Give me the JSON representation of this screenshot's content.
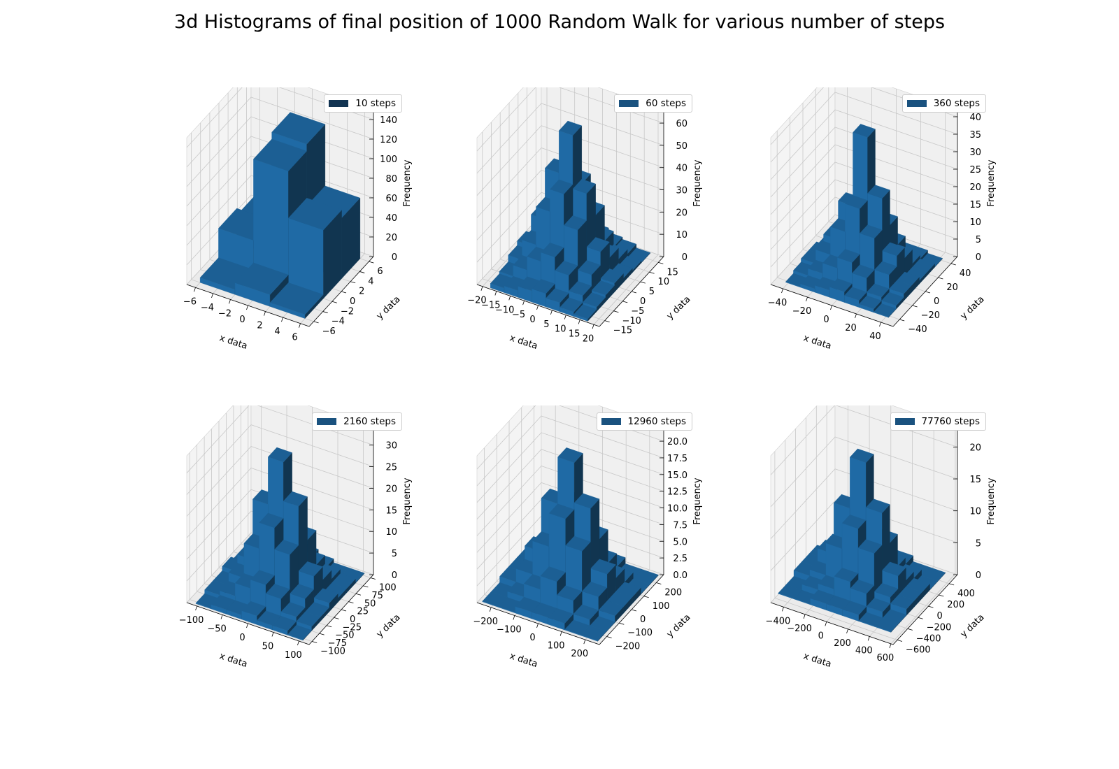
{
  "title": "3d Histograms of final position of 1000 Random Walk for various number of steps",
  "chart_data": [
    {
      "type": "bar3d",
      "legend": "10 steps",
      "legend_color": "#123452",
      "xlabel": "x data",
      "ylabel": "y data",
      "zlabel": "Frequency",
      "xlim": [
        -7,
        7
      ],
      "ylim": [
        -7,
        7
      ],
      "zlim": [
        0,
        150
      ],
      "xticks": [
        -6,
        -4,
        -2,
        0,
        2,
        4,
        6
      ],
      "xtick_labels": [
        "−6",
        "−4",
        "−2",
        "0",
        "2",
        "4",
        "6"
      ],
      "yticks": [
        -6,
        -4,
        -2,
        0,
        2,
        4,
        6
      ],
      "ytick_labels": [
        "−6",
        "−4",
        "−2",
        "0",
        "2",
        "4",
        "6"
      ],
      "zticks": [
        0,
        20,
        40,
        60,
        80,
        100,
        120,
        140
      ],
      "ztick_labels": [
        "0",
        "20",
        "40",
        "60",
        "80",
        "100",
        "120",
        "140"
      ],
      "bars": [
        {
          "x": -6,
          "y": -6,
          "dx": 4,
          "dy": 4,
          "z": 5
        },
        {
          "x": -2,
          "y": -6,
          "dx": 4,
          "dy": 4,
          "z": 12
        },
        {
          "x": 2,
          "y": -6,
          "dx": 4,
          "dy": 4,
          "z": 4
        },
        {
          "x": -6,
          "y": -2,
          "dx": 4,
          "dy": 4,
          "z": 35
        },
        {
          "x": -2,
          "y": -2,
          "dx": 4,
          "dy": 4,
          "z": 118
        },
        {
          "x": 2,
          "y": -2,
          "dx": 4,
          "dy": 4,
          "z": 70
        },
        {
          "x": -6,
          "y": 2,
          "dx": 4,
          "dy": 4,
          "z": 28
        },
        {
          "x": -2,
          "y": 2,
          "dx": 4,
          "dy": 4,
          "z": 125
        },
        {
          "x": 2,
          "y": 2,
          "dx": 4,
          "dy": 4,
          "z": 62
        }
      ]
    },
    {
      "type": "bar3d",
      "legend": "60 steps",
      "legend_color": "#1a527f",
      "xlabel": "x data",
      "ylabel": "y data",
      "zlabel": "Frequency",
      "xlim": [
        -22,
        22
      ],
      "ylim": [
        -18,
        18
      ],
      "zlim": [
        0,
        66
      ],
      "xticks": [
        -20,
        -15,
        -10,
        -5,
        0,
        5,
        10,
        15,
        20
      ],
      "xtick_labels": [
        "−20",
        "−15",
        "−10",
        "−5",
        "0",
        "5",
        "10",
        "15",
        "20"
      ],
      "yticks": [
        -15,
        -10,
        -5,
        0,
        5,
        10,
        15
      ],
      "ytick_labels": [
        "−15",
        "−10",
        "−5",
        "0",
        "5",
        "10",
        "15"
      ],
      "zticks": [
        0,
        10,
        20,
        30,
        40,
        50,
        60
      ],
      "ztick_labels": [
        "0",
        "10",
        "20",
        "30",
        "40",
        "50",
        "60"
      ],
      "grid_points": [
        -15,
        -10,
        -5,
        0,
        5,
        10,
        15
      ],
      "grid_heights": [
        [
          2,
          3,
          5,
          6,
          4,
          2,
          1
        ],
        [
          3,
          8,
          14,
          18,
          12,
          5,
          2
        ],
        [
          6,
          15,
          32,
          42,
          28,
          10,
          3
        ],
        [
          8,
          22,
          45,
          64,
          40,
          16,
          4
        ],
        [
          5,
          14,
          30,
          38,
          26,
          9,
          2
        ],
        [
          3,
          6,
          12,
          16,
          10,
          4,
          1
        ],
        [
          1,
          2,
          4,
          5,
          3,
          2,
          0
        ]
      ]
    },
    {
      "type": "bar3d",
      "legend": "360 steps",
      "legend_color": "#1a527f",
      "xlabel": "x data",
      "ylabel": "y data",
      "zlabel": "Frequency",
      "xlim": [
        -50,
        50
      ],
      "ylim": [
        -50,
        50
      ],
      "zlim": [
        0,
        42
      ],
      "xticks": [
        -40,
        -20,
        0,
        20,
        40
      ],
      "xtick_labels": [
        "−40",
        "−20",
        "0",
        "20",
        "40"
      ],
      "yticks": [
        -40,
        -20,
        0,
        20,
        40
      ],
      "ytick_labels": [
        "−40",
        "−20",
        "0",
        "20",
        "40"
      ],
      "zticks": [
        0,
        5,
        10,
        15,
        20,
        25,
        30,
        35,
        40
      ],
      "ztick_labels": [
        "0",
        "5",
        "10",
        "15",
        "20",
        "25",
        "30",
        "35",
        "40"
      ],
      "grid_points": [
        -36,
        -24,
        -12,
        0,
        12,
        24,
        36
      ],
      "grid_heights": [
        [
          0,
          1,
          2,
          3,
          2,
          1,
          0
        ],
        [
          1,
          3,
          6,
          9,
          6,
          2,
          1
        ],
        [
          2,
          6,
          14,
          22,
          15,
          6,
          2
        ],
        [
          2,
          8,
          19,
          40,
          24,
          9,
          2
        ],
        [
          1,
          5,
          12,
          20,
          14,
          6,
          1
        ],
        [
          1,
          2,
          5,
          8,
          6,
          2,
          1
        ],
        [
          0,
          1,
          1,
          2,
          1,
          1,
          0
        ]
      ]
    },
    {
      "type": "bar3d",
      "legend": "2160 steps",
      "legend_color": "#1a527f",
      "xlabel": "x data",
      "ylabel": "y data",
      "zlabel": "Frequency",
      "xlim": [
        -120,
        120
      ],
      "ylim": [
        -110,
        110
      ],
      "zlim": [
        0,
        34
      ],
      "xticks": [
        -100,
        -50,
        0,
        50,
        100
      ],
      "xtick_labels": [
        "−100",
        "−50",
        "0",
        "50",
        "100"
      ],
      "yticks": [
        -100,
        -75,
        -50,
        -25,
        0,
        25,
        50,
        75,
        100
      ],
      "ytick_labels": [
        "−100",
        "−75",
        "−50",
        "−25",
        "0",
        "25",
        "50",
        "75",
        "100"
      ],
      "zticks": [
        0,
        5,
        10,
        15,
        20,
        25,
        30
      ],
      "ztick_labels": [
        "0",
        "5",
        "10",
        "15",
        "20",
        "25",
        "30"
      ],
      "grid_points": [
        -90,
        -60,
        -30,
        0,
        30,
        60,
        90
      ],
      "grid_heights": [
        [
          0,
          1,
          1,
          2,
          1,
          1,
          0
        ],
        [
          1,
          2,
          5,
          7,
          5,
          2,
          1
        ],
        [
          1,
          4,
          12,
          18,
          13,
          4,
          1
        ],
        [
          2,
          6,
          20,
          31,
          22,
          7,
          2
        ],
        [
          1,
          4,
          11,
          16,
          12,
          4,
          1
        ],
        [
          1,
          2,
          4,
          6,
          4,
          2,
          1
        ],
        [
          0,
          1,
          1,
          2,
          1,
          0,
          0
        ]
      ]
    },
    {
      "type": "bar3d",
      "legend": "12960 steps",
      "legend_color": "#1a527f",
      "xlabel": "x data",
      "ylabel": "y data",
      "zlabel": "Frequency",
      "xlim": [
        -260,
        260
      ],
      "ylim": [
        -260,
        260
      ],
      "zlim": [
        0,
        22
      ],
      "xticks": [
        -200,
        -100,
        0,
        100,
        200
      ],
      "xtick_labels": [
        "−200",
        "−100",
        "0",
        "100",
        "200"
      ],
      "yticks": [
        -200,
        -100,
        0,
        100,
        200
      ],
      "ytick_labels": [
        "−200",
        "−100",
        "0",
        "100",
        "200"
      ],
      "zticks": [
        0,
        2.5,
        5,
        7.5,
        10,
        12.5,
        15,
        17.5,
        20
      ],
      "ztick_labels": [
        "0.0",
        "2.5",
        "5.0",
        "7.5",
        "10.0",
        "12.5",
        "15.0",
        "17.5",
        "20.0"
      ],
      "grid_points": [
        -210,
        -140,
        -70,
        0,
        70,
        140,
        210
      ],
      "grid_heights": [
        [
          0,
          0,
          1,
          1,
          1,
          0,
          0
        ],
        [
          0,
          1,
          3,
          5,
          3,
          1,
          0
        ],
        [
          1,
          3,
          8,
          13,
          9,
          3,
          1
        ],
        [
          1,
          5,
          13,
          20,
          14,
          5,
          1
        ],
        [
          1,
          3,
          8,
          12,
          8,
          3,
          1
        ],
        [
          0,
          1,
          3,
          4,
          3,
          1,
          0
        ],
        [
          0,
          0,
          1,
          1,
          1,
          0,
          0
        ]
      ]
    },
    {
      "type": "bar3d",
      "legend": "77760 steps",
      "legend_color": "#1a527f",
      "xlabel": "x data",
      "ylabel": "y data",
      "zlabel": "Frequency",
      "xlim": [
        -520,
        620
      ],
      "ylim": [
        -680,
        560
      ],
      "zlim": [
        0,
        23
      ],
      "xticks": [
        -400,
        -200,
        0,
        200,
        400,
        600
      ],
      "xtick_labels": [
        "−400",
        "−200",
        "0",
        "200",
        "400",
        "600"
      ],
      "yticks": [
        -600,
        -400,
        -200,
        0,
        200,
        400
      ],
      "ytick_labels": [
        "−600",
        "−400",
        "−200",
        "0",
        "200",
        "400"
      ],
      "zticks": [
        0,
        5,
        10,
        15,
        20
      ],
      "ztick_labels": [
        "0",
        "5",
        "10",
        "15",
        "20"
      ],
      "grid_points": [
        -450,
        -300,
        -150,
        0,
        150,
        300,
        450
      ],
      "grid_heights": [
        [
          0,
          0,
          1,
          1,
          1,
          0,
          0
        ],
        [
          0,
          1,
          2,
          4,
          3,
          1,
          0
        ],
        [
          1,
          2,
          7,
          11,
          8,
          2,
          1
        ],
        [
          1,
          4,
          12,
          20,
          13,
          4,
          1
        ],
        [
          1,
          2,
          7,
          10,
          7,
          2,
          1
        ],
        [
          0,
          1,
          2,
          3,
          2,
          1,
          0
        ],
        [
          0,
          0,
          1,
          1,
          1,
          0,
          0
        ]
      ]
    }
  ]
}
